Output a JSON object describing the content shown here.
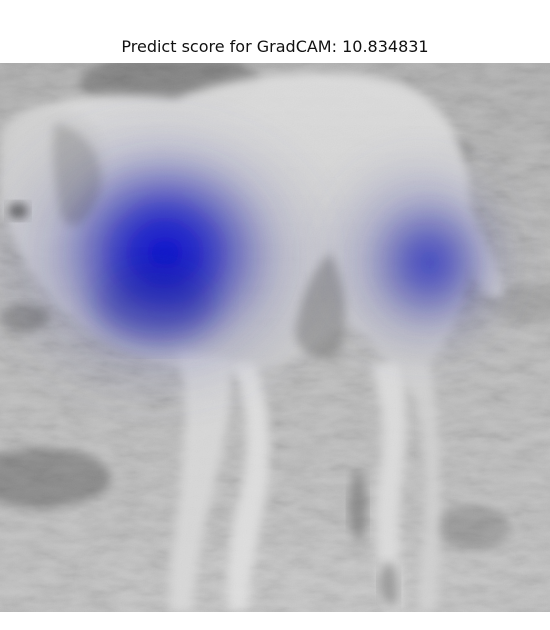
{
  "figure": {
    "title": "Predict score for GradCAM: 10.834831"
  },
  "image": {
    "subject_icon": "dog-photo-grayscale",
    "overlay_icon": "gradcam-heatmap-overlay",
    "heatmap_color": "#0a12ff",
    "photo_palette": [
      "#ffffff",
      "#d8d8d8",
      "#a9a9a9",
      "#6f6f6f",
      "#3a3a3a"
    ]
  }
}
